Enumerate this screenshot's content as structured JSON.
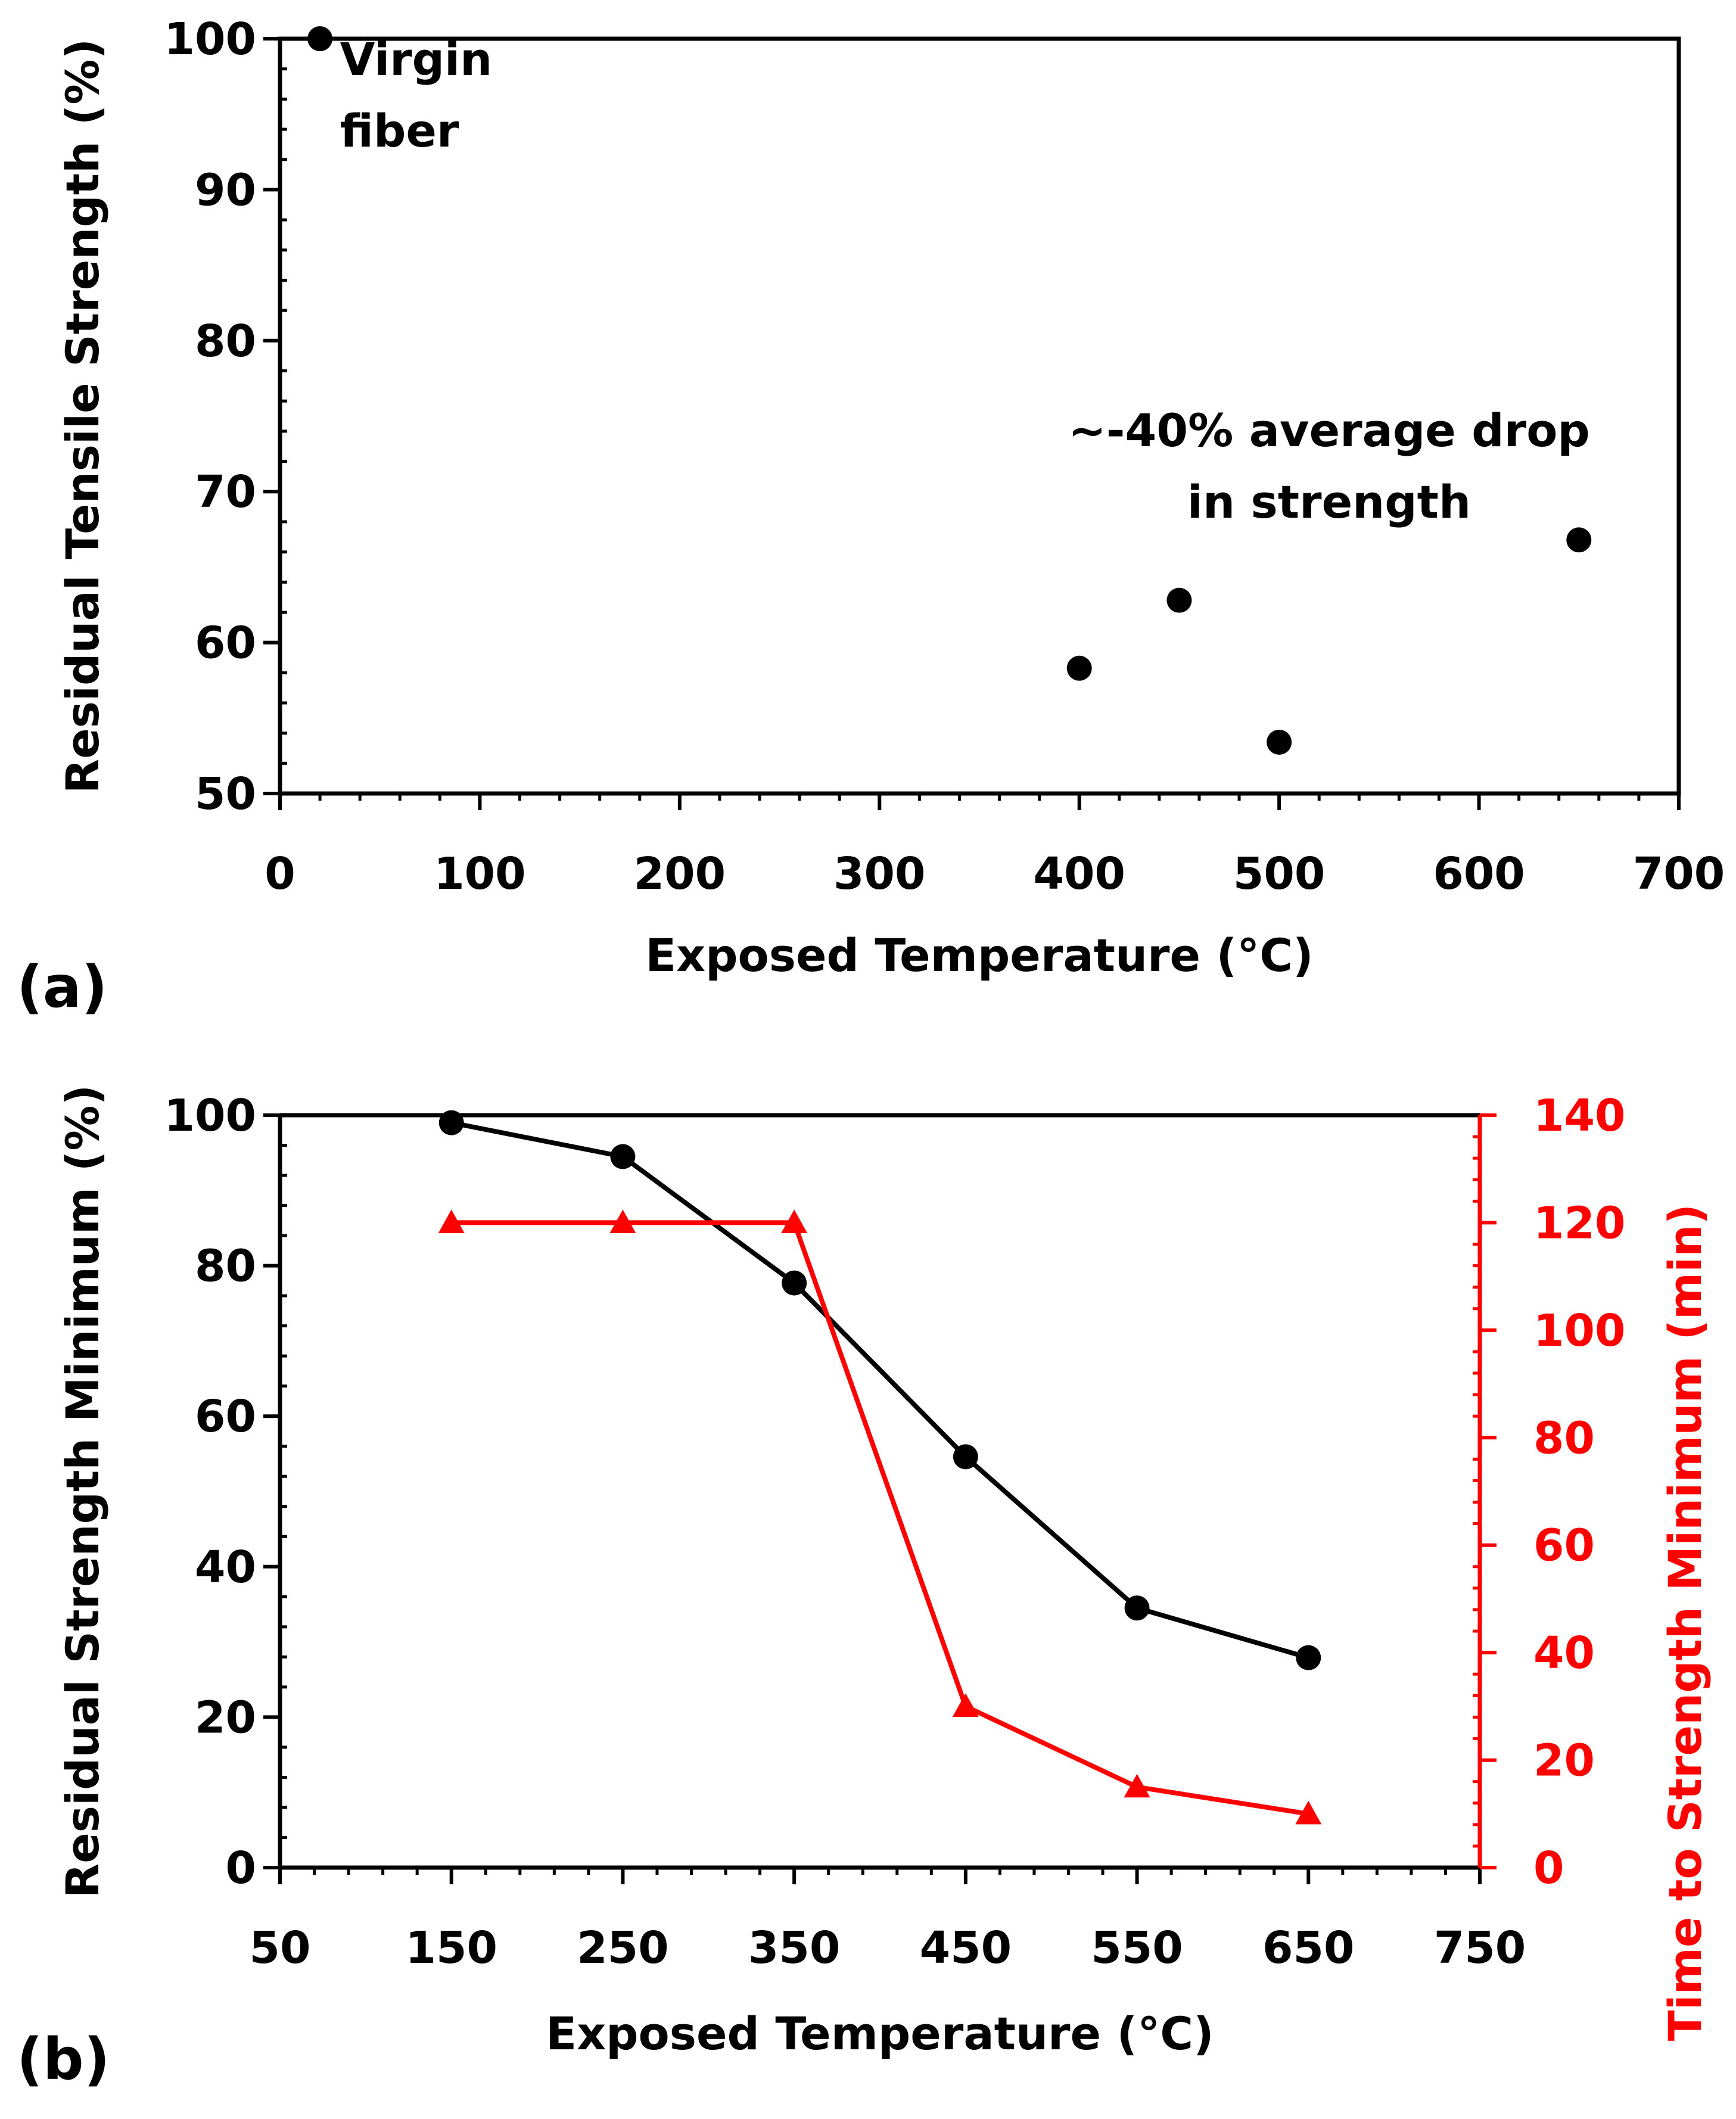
{
  "colors": {
    "black": "#000000",
    "red": "#ff0000",
    "background": "#ffffff"
  },
  "panels": [
    {
      "label": "(a)"
    },
    {
      "label": "(b)"
    }
  ],
  "chart_data": [
    {
      "type": "scatter",
      "panel": "(a)",
      "xlabel": "Exposed Temperature (°C)",
      "ylabel": "Residual Tensile Strength (%)",
      "xlim": [
        0,
        700
      ],
      "ylim": [
        50,
        100
      ],
      "xticks": [
        0,
        100,
        200,
        300,
        400,
        500,
        600,
        700
      ],
      "yticks": [
        50,
        60,
        70,
        80,
        90,
        100
      ],
      "grid": false,
      "series": [
        {
          "color": "#000000",
          "marker": "circle",
          "x": [
            20,
            400,
            450,
            500,
            650
          ],
          "y": [
            100,
            58.3,
            62.8,
            53.4,
            66.8
          ]
        }
      ],
      "annotations": [
        {
          "lines": [
            "Virgin",
            "fiber"
          ],
          "x": 30,
          "y": 97.6,
          "align": "start"
        },
        {
          "lines": [
            "~-40% average drop",
            "in strength"
          ],
          "x": 525,
          "y": 73,
          "align": "middle"
        }
      ]
    },
    {
      "type": "line",
      "panel": "(b)",
      "xlabel": "Exposed Temperature (°C)",
      "ylabel": "Residual Strength Minimum (%)",
      "y2label": "Time to Strength Minimum (min)",
      "xlim": [
        50,
        750
      ],
      "ylim": [
        0,
        100
      ],
      "y2lim": [
        0,
        140
      ],
      "xticks": [
        50,
        150,
        250,
        350,
        450,
        550,
        650,
        750
      ],
      "yticks": [
        0,
        20,
        40,
        60,
        80,
        100
      ],
      "y2ticks": [
        0,
        20,
        40,
        60,
        80,
        100,
        120,
        140
      ],
      "grid": false,
      "series": [
        {
          "axis": "left",
          "color": "#000000",
          "marker": "circle",
          "x": [
            150,
            250,
            350,
            450,
            550,
            650
          ],
          "y": [
            99,
            94.5,
            77.7,
            54.6,
            34.5,
            27.9
          ]
        },
        {
          "axis": "right",
          "color": "#ff0000",
          "marker": "triangle",
          "x": [
            150,
            250,
            350,
            450,
            550,
            650
          ],
          "y": [
            120,
            120,
            120,
            30,
            15,
            10
          ]
        }
      ]
    }
  ]
}
